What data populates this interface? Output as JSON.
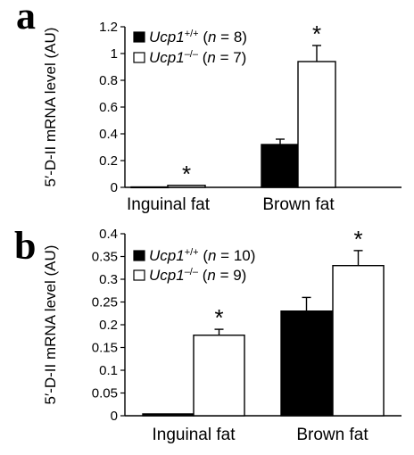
{
  "chart_data": [
    {
      "panel": "a",
      "type": "bar",
      "ylabel": "5′-D-II mRNA level (AU)",
      "ylim": [
        0,
        1.2
      ],
      "yticks": [
        "0",
        "0.2",
        "0.4",
        "0.6",
        "0.8",
        "1",
        "1.2"
      ],
      "categories": [
        "Inguinal fat",
        "Brown fat"
      ],
      "series": [
        {
          "name": "Ucp1",
          "sup": "+/+",
          "n_label": " (n = 8)",
          "fill": "#000000",
          "values": [
            0.003,
            0.32
          ],
          "errors": [
            0,
            0.04
          ]
        },
        {
          "name": "Ucp1",
          "sup": "–/–",
          "n_label": " (n = 7)",
          "fill": "#ffffff",
          "values": [
            0.015,
            0.94
          ],
          "errors": [
            0,
            0.12
          ]
        }
      ],
      "annotations": [
        {
          "text": "*",
          "category": 0,
          "series": 1
        },
        {
          "text": "*",
          "category": 1,
          "series": 1
        }
      ]
    },
    {
      "panel": "b",
      "type": "bar",
      "ylabel": "5′-D-II mRNA level (AU)",
      "ylim": [
        0,
        0.4
      ],
      "yticks": [
        "0",
        "0.05",
        "0.1",
        "0.15",
        "0.2",
        "0.25",
        "0.3",
        "0.35",
        "0.4"
      ],
      "categories": [
        "Inguinal fat",
        "Brown fat"
      ],
      "series": [
        {
          "name": "Ucp1",
          "sup": "+/+",
          "n_label": " (n = 10)",
          "fill": "#000000",
          "values": [
            0.004,
            0.23
          ],
          "errors": [
            0,
            0.03
          ]
        },
        {
          "name": "Ucp1",
          "sup": "–/–",
          "n_label": " (n = 9)",
          "fill": "#ffffff",
          "values": [
            0.177,
            0.33
          ],
          "errors": [
            0.013,
            0.033
          ]
        }
      ],
      "annotations": [
        {
          "text": "*",
          "category": 0,
          "series": 1
        },
        {
          "text": "*",
          "category": 1,
          "series": 1
        }
      ]
    }
  ]
}
